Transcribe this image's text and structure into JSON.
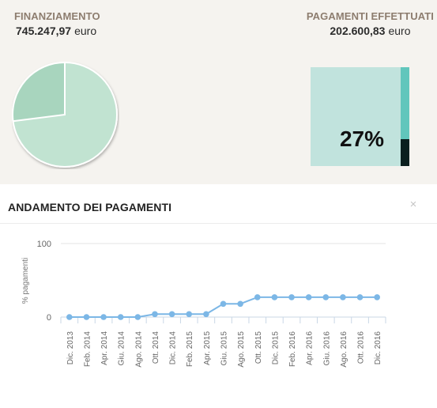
{
  "summary": {
    "funding": {
      "label": "FINANZIAMENTO",
      "value": "745.247,97",
      "unit": "euro"
    },
    "payments": {
      "label": "PAGAMENTI EFFETTUATI",
      "value": "202.600,83",
      "unit": "euro"
    },
    "pie": {
      "paid_fraction": 0.27,
      "colors": {
        "remaining": "#c1e3d1",
        "paid": "#a8d5be",
        "stroke": "#ffffff"
      }
    },
    "progress": {
      "percent_label": "27%",
      "fraction": 0.27,
      "colors": {
        "box": "#c1e3dd",
        "track": "#61c6bc",
        "fill": "#0a1f1e"
      }
    }
  },
  "section": {
    "title": "ANDAMENTO DEI PAGAMENTI",
    "close_icon": "×",
    "close_icon_name": "close-icon"
  },
  "chart_data": {
    "type": "line",
    "title": "",
    "xlabel": "",
    "ylabel": "% pagamenti",
    "ylim": [
      0,
      100
    ],
    "yticks": [
      0,
      100
    ],
    "grid": true,
    "categories": [
      "Dic. 2013",
      "Feb. 2014",
      "Apr. 2014",
      "Giu. 2014",
      "Ago. 2014",
      "Ott. 2014",
      "Dic. 2014",
      "Feb. 2015",
      "Apr. 2015",
      "Giu. 2015",
      "Ago. 2015",
      "Ott. 2015",
      "Dic. 2015",
      "Feb. 2016",
      "Apr. 2016",
      "Giu. 2016",
      "Ago. 2016",
      "Ott. 2016",
      "Dic. 2016"
    ],
    "series": [
      {
        "values": [
          0,
          0,
          0,
          0,
          0,
          4,
          4,
          4,
          4,
          18,
          18,
          27,
          27,
          27,
          27,
          27,
          27,
          27,
          27
        ]
      }
    ],
    "colors": {
      "line": "#7cb7e6",
      "point": "#7cb7e6",
      "grid": "#e3e3e3",
      "axis": "#c9d7e6",
      "label": "#666666"
    }
  }
}
